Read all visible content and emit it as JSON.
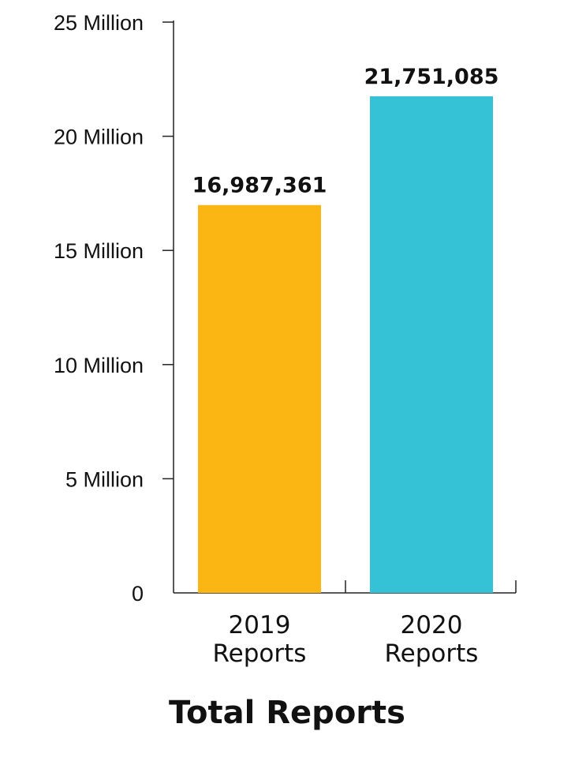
{
  "chart_data": {
    "type": "bar",
    "title": "Total Reports",
    "categories": [
      [
        "2019",
        "Reports"
      ],
      [
        "2020",
        "Reports"
      ]
    ],
    "values": [
      16987361,
      21751085
    ],
    "value_labels": [
      "16,987,361",
      "21,751,085"
    ],
    "colors": [
      "#FBB614",
      "#36C2D6"
    ],
    "ylim": [
      0,
      25000000
    ],
    "y_ticks": [
      {
        "value": 0,
        "label": "0"
      },
      {
        "value": 5000000,
        "label": "5 Million"
      },
      {
        "value": 10000000,
        "label": "10 Million"
      },
      {
        "value": 15000000,
        "label": "15 Million"
      },
      {
        "value": 20000000,
        "label": "20 Million"
      },
      {
        "value": 25000000,
        "label": "25 Million"
      }
    ],
    "xlabel": "",
    "ylabel": "",
    "grid": false,
    "legend": "none"
  }
}
